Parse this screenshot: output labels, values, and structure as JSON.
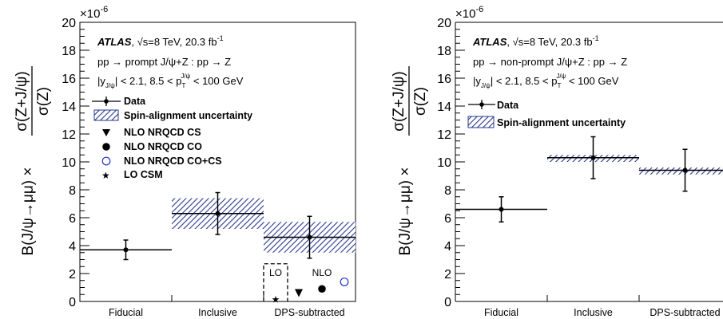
{
  "chart_data": [
    {
      "type": "scatter",
      "panel": "left",
      "ylabel_main": "B(J/ψ→μμ) ×",
      "ylabel_numerator": "σ(Z+J/ψ)",
      "ylabel_denominator": "σ(Z)",
      "y_multiplier": "×10",
      "y_exponent": "-6",
      "ylim": [
        0,
        20
      ],
      "yticks": [
        "0",
        "2",
        "4",
        "6",
        "8",
        "10",
        "12",
        "14",
        "16",
        "18",
        "20"
      ],
      "categories": [
        "Fiducial",
        "Inclusive",
        "DPS-subtracted"
      ],
      "info": {
        "experiment": "ATLAS",
        "energy_prefix": ", √s=8 TeV, 20.3 fb",
        "energy_sup": "-1",
        "process": "pp → prompt J/ψ+Z : pp → Z",
        "cuts_a": "|y",
        "cuts_sub1": "J/ψ",
        "cuts_b": "| < 2.1, 8.5 < p",
        "cuts_sub2": "T",
        "cuts_sup2": "J/ψ",
        "cuts_c": " < 100 GeV"
      },
      "legend": {
        "data": "Data",
        "spin": "Spin-alignment uncertainty",
        "cs": "NLO NRQCD CS",
        "co": "NLO NRQCD CO",
        "cocs": "NLO NRQCD CO+CS",
        "csm": "LO CSM"
      },
      "annotations": {
        "lo": "LO",
        "nlo": "NLO"
      },
      "data_points": [
        {
          "category": "Fiducial",
          "value": 3.7,
          "err_low": 0.7,
          "err_high": 0.7
        },
        {
          "category": "Inclusive",
          "value": 6.3,
          "err_low": 1.5,
          "err_high": 1.5
        },
        {
          "category": "DPS-subtracted",
          "value": 4.6,
          "err_low": 1.5,
          "err_high": 1.5
        }
      ],
      "spin_bands": [
        {
          "category": "Inclusive",
          "low": 5.2,
          "high": 7.4
        },
        {
          "category": "DPS-subtracted",
          "low": 3.5,
          "high": 5.7
        }
      ],
      "theory": {
        "lo_csm": 0.2,
        "lo_box_high": 2.7,
        "nlo_cs": 0.6,
        "nlo_co": 0.9,
        "nlo_cocs": 1.4
      }
    },
    {
      "type": "scatter",
      "panel": "right",
      "ylabel_main": "B(J/ψ→μμ) ×",
      "ylabel_numerator": "σ(Z+J/ψ)",
      "ylabel_denominator": "σ(Z)",
      "y_multiplier": "×10",
      "y_exponent": "-6",
      "ylim": [
        0,
        20
      ],
      "yticks": [
        "0",
        "2",
        "4",
        "6",
        "8",
        "10",
        "12",
        "14",
        "16",
        "18",
        "20"
      ],
      "categories": [
        "Fiducial",
        "Inclusive",
        "DPS-subtracted"
      ],
      "info": {
        "experiment": "ATLAS",
        "energy_prefix": ", √s=8 TeV, 20.3 fb",
        "energy_sup": "-1",
        "process": "pp → non-prompt J/ψ+Z : pp → Z",
        "cuts_a": "|y",
        "cuts_sub1": "J/ψ",
        "cuts_b": "| < 2.1, 8.5 < p",
        "cuts_sub2": "T",
        "cuts_sup2": "J/ψ",
        "cuts_c": " < 100 GeV"
      },
      "legend": {
        "data": "Data",
        "spin": "Spin-alignment uncertainty"
      },
      "data_points": [
        {
          "category": "Fiducial",
          "value": 6.6,
          "err_low": 0.9,
          "err_high": 0.9
        },
        {
          "category": "Inclusive",
          "value": 10.3,
          "err_low": 1.5,
          "err_high": 1.5
        },
        {
          "category": "DPS-subtracted",
          "value": 9.4,
          "err_low": 1.5,
          "err_high": 1.5
        }
      ],
      "spin_bands": [
        {
          "category": "Inclusive",
          "low": 10.0,
          "high": 10.5
        },
        {
          "category": "DPS-subtracted",
          "low": 9.1,
          "high": 9.6
        }
      ]
    }
  ]
}
